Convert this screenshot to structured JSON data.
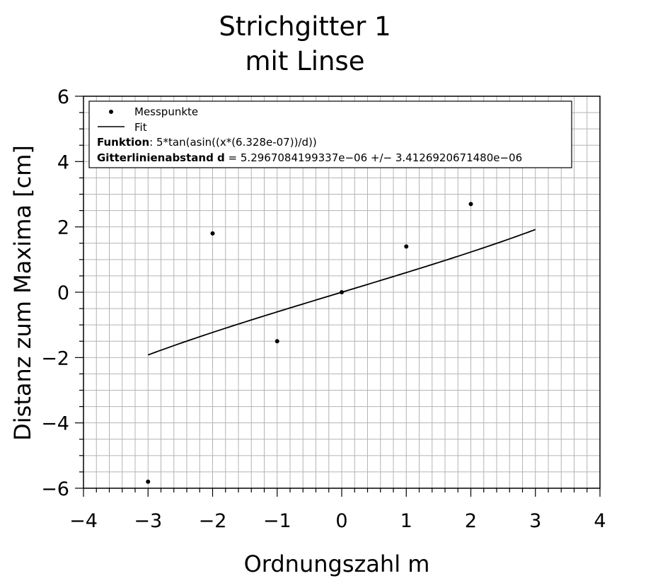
{
  "chart_data": {
    "type": "scatter",
    "title": [
      "Strichgitter 1",
      "mit Linse"
    ],
    "xlabel": "Ordnungszahl m",
    "ylabel": "Distanz zum Maxima [cm]",
    "xlim": [
      -4,
      4
    ],
    "ylim": [
      -6,
      6
    ],
    "x_ticks": [
      -4,
      -3,
      -2,
      -1,
      0,
      1,
      2,
      3,
      4
    ],
    "y_ticks": [
      -6,
      -4,
      -2,
      0,
      2,
      4,
      6
    ],
    "x_tick_labels": [
      "−4",
      "−3",
      "−2",
      "−1",
      "0",
      "1",
      "2",
      "3",
      "4"
    ],
    "y_tick_labels": [
      "−6",
      "−4",
      "−2",
      "0",
      "2",
      "4",
      "6"
    ],
    "grid": true,
    "legend_position": "top-left",
    "series": [
      {
        "name": "Messpunkte",
        "kind": "points",
        "x": [
          -3,
          -2,
          -1,
          0,
          1,
          2
        ],
        "y": [
          -5.8,
          1.8,
          -1.5,
          0,
          1.4,
          2.7
        ]
      },
      {
        "name": "Fit",
        "kind": "line",
        "function": "5*tan(asin((x*(6.328e-07))/d))",
        "d": 5.2967084199337e-06,
        "x_range": [
          -3,
          3
        ]
      }
    ],
    "annotations": {
      "function_label": "Funktion",
      "function_text": ": 5*tan(asin((x*(6.328e-07))/d))",
      "param_label": "Gitterlinienabstand d",
      "param_text": " = 5.2967084199337e−06 +/− 3.4126920671480e−06"
    }
  }
}
